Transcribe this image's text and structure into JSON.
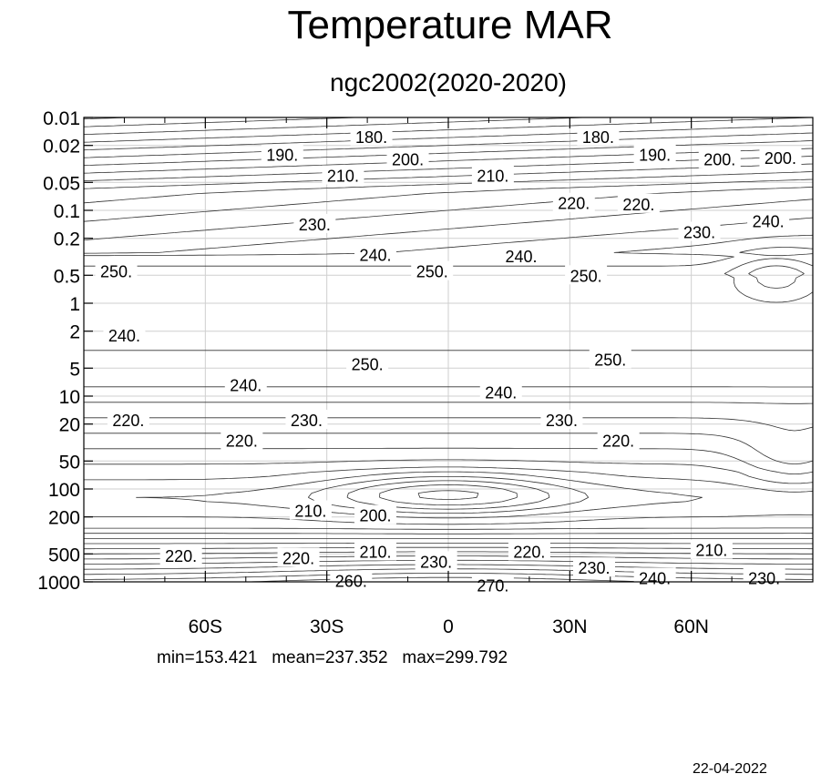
{
  "chart_data": {
    "type": "contour",
    "title": "Temperature MAR",
    "subtitle": "ngc2002(2020-2020)",
    "x_ticks": [
      "60S",
      "30S",
      "0",
      "30N",
      "60N"
    ],
    "x_values": [
      -60,
      -30,
      0,
      30,
      60
    ],
    "xlim": [
      -90,
      90
    ],
    "y_ticks": [
      "0.01",
      "0.02",
      "0.05",
      "0.1",
      "0.2",
      "0.5",
      "1",
      "2",
      "5",
      "10",
      "20",
      "50",
      "100",
      "200",
      "500",
      "1000"
    ],
    "y_scale": "log",
    "y_reversed": true,
    "ylim": [
      0.01,
      1000
    ],
    "grid": true,
    "contour_labels": [
      {
        "text": "180.",
        "lat": -19,
        "p": 0.016
      },
      {
        "text": "180.",
        "lat": 37,
        "p": 0.016
      },
      {
        "text": "190.",
        "lat": -41,
        "p": 0.025
      },
      {
        "text": "190.",
        "lat": 51,
        "p": 0.025
      },
      {
        "text": "200.",
        "lat": -10,
        "p": 0.028
      },
      {
        "text": "200.",
        "lat": 67,
        "p": 0.028
      },
      {
        "text": "200.",
        "lat": 82,
        "p": 0.027
      },
      {
        "text": "210.",
        "lat": -26,
        "p": 0.042
      },
      {
        "text": "210.",
        "lat": 11,
        "p": 0.042
      },
      {
        "text": "220.",
        "lat": 31,
        "p": 0.083
      },
      {
        "text": "220.",
        "lat": 47,
        "p": 0.085
      },
      {
        "text": "230.",
        "lat": -33,
        "p": 0.14
      },
      {
        "text": "230.",
        "lat": 62,
        "p": 0.17
      },
      {
        "text": "240.",
        "lat": 79,
        "p": 0.13
      },
      {
        "text": "240.",
        "lat": -18,
        "p": 0.3
      },
      {
        "text": "240.",
        "lat": 18,
        "p": 0.31
      },
      {
        "text": "250.",
        "lat": -82,
        "p": 0.45
      },
      {
        "text": "250.",
        "lat": -4,
        "p": 0.45
      },
      {
        "text": "250.",
        "lat": 34,
        "p": 0.5
      },
      {
        "text": "240.",
        "lat": -80,
        "p": 2.2
      },
      {
        "text": "250.",
        "lat": -20,
        "p": 4.5
      },
      {
        "text": "250.",
        "lat": 40,
        "p": 4
      },
      {
        "text": "240.",
        "lat": -50,
        "p": 7.5
      },
      {
        "text": "240.",
        "lat": 13,
        "p": 9
      },
      {
        "text": "220.",
        "lat": -79,
        "p": 18
      },
      {
        "text": "230.",
        "lat": -35,
        "p": 18
      },
      {
        "text": "230.",
        "lat": 28,
        "p": 18
      },
      {
        "text": "220.",
        "lat": -51,
        "p": 30
      },
      {
        "text": "220.",
        "lat": 42,
        "p": 30
      },
      {
        "text": "210.",
        "lat": -34,
        "p": 170
      },
      {
        "text": "200.",
        "lat": -18,
        "p": 190
      },
      {
        "text": "210.",
        "lat": 65,
        "p": 450
      },
      {
        "text": "220.",
        "lat": -66,
        "p": 520
      },
      {
        "text": "220.",
        "lat": -37,
        "p": 550
      },
      {
        "text": "210.",
        "lat": -18,
        "p": 470
      },
      {
        "text": "230.",
        "lat": -3,
        "p": 600
      },
      {
        "text": "220.",
        "lat": 20,
        "p": 470
      },
      {
        "text": "230.",
        "lat": 36,
        "p": 700
      },
      {
        "text": "240.",
        "lat": 51,
        "p": 900
      },
      {
        "text": "230.",
        "lat": 78,
        "p": 900
      },
      {
        "text": "260.",
        "lat": -24,
        "p": 970
      },
      {
        "text": "270.",
        "lat": 11,
        "p": 1080
      }
    ],
    "stats": {
      "min": "153.421",
      "mean": "237.352",
      "max": "299.792"
    }
  },
  "stats_text": "min=153.421   mean=237.352   max=299.792",
  "date": "22-04-2022"
}
